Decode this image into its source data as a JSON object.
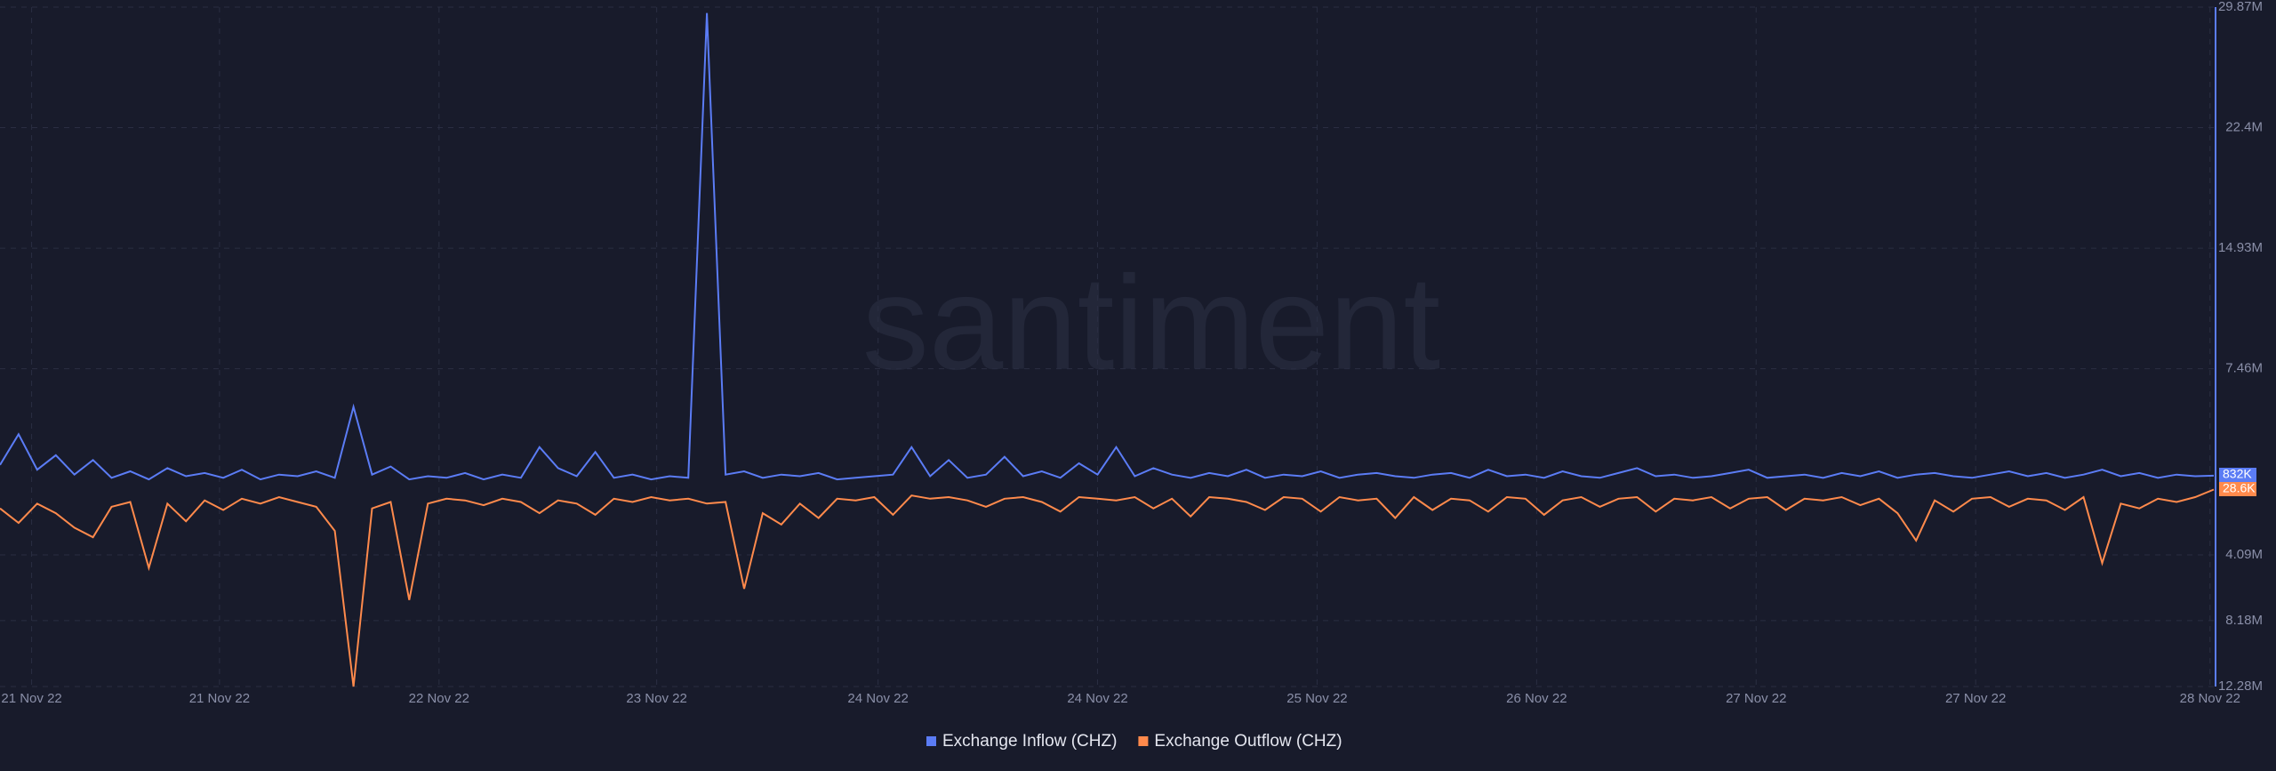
{
  "chart_data": {
    "type": "line",
    "watermark": "santiment",
    "xlim": [
      0,
      119
    ],
    "xticks": [
      {
        "value": 1.7,
        "label": "21 Nov 22"
      },
      {
        "value": 11.8,
        "label": "21 Nov 22"
      },
      {
        "value": 23.6,
        "label": "22 Nov 22"
      },
      {
        "value": 35.3,
        "label": "23 Nov 22"
      },
      {
        "value": 47.2,
        "label": "24 Nov 22"
      },
      {
        "value": 59.0,
        "label": "24 Nov 22"
      },
      {
        "value": 70.8,
        "label": "25 Nov 22"
      },
      {
        "value": 82.6,
        "label": "26 Nov 22"
      },
      {
        "value": 94.4,
        "label": "27 Nov 22"
      },
      {
        "value": 106.2,
        "label": "27 Nov 22"
      },
      {
        "value": 118.8,
        "label": "28 Nov 22"
      }
    ],
    "ylim": [
      0,
      29870000
    ],
    "yticks": [
      {
        "value": 7460000,
        "label": "7.46M"
      },
      {
        "value": 14930000,
        "label": "14.93M"
      },
      {
        "value": 22400000,
        "label": "22.4M"
      },
      {
        "value": 29870000,
        "label": "29.87M"
      }
    ],
    "y2lim": [
      0,
      12280000
    ],
    "y2ticks": [
      {
        "value": 4090000,
        "label": "4.09M"
      },
      {
        "value": 8180000,
        "label": "8.18M"
      },
      {
        "value": 12280000,
        "label": "12.28M"
      }
    ],
    "grid": true,
    "series": [
      {
        "name": "Exchange Inflow (CHZ)",
        "color": "#5b7cf5",
        "axis": "y",
        "last_value_label": "832K",
        "values": [
          1500000,
          3400000,
          1200000,
          2100000,
          900000,
          1800000,
          700000,
          1100000,
          600000,
          1300000,
          800000,
          1000000,
          700000,
          1200000,
          600000,
          900000,
          800000,
          1100000,
          700000,
          5100000,
          900000,
          1400000,
          600000,
          800000,
          700000,
          1000000,
          600000,
          900000,
          700000,
          2600000,
          1300000,
          800000,
          2300000,
          700000,
          900000,
          600000,
          800000,
          700000,
          29500000,
          900000,
          1100000,
          700000,
          900000,
          800000,
          1000000,
          600000,
          700000,
          800000,
          900000,
          2600000,
          800000,
          1800000,
          700000,
          900000,
          2000000,
          800000,
          1100000,
          700000,
          1600000,
          900000,
          2600000,
          800000,
          1300000,
          900000,
          700000,
          1000000,
          800000,
          1200000,
          700000,
          900000,
          800000,
          1100000,
          700000,
          900000,
          1000000,
          800000,
          700000,
          900000,
          1000000,
          700000,
          1200000,
          800000,
          900000,
          700000,
          1100000,
          800000,
          700000,
          1000000,
          1300000,
          800000,
          900000,
          700000,
          800000,
          1000000,
          1200000,
          700000,
          800000,
          900000,
          700000,
          1000000,
          800000,
          1100000,
          700000,
          900000,
          1000000,
          800000,
          700000,
          900000,
          1100000,
          800000,
          1000000,
          700000,
          900000,
          1200000,
          800000,
          1000000,
          700000,
          900000,
          800000,
          832000
        ]
      },
      {
        "name": "Exchange Outflow (CHZ)",
        "color": "#ff8a4c",
        "axis": "y2",
        "last_value_label": "28.6K",
        "values": [
          1200000,
          2100000,
          900000,
          1500000,
          2400000,
          3000000,
          1100000,
          800000,
          4900000,
          900000,
          2000000,
          700000,
          1300000,
          600000,
          900000,
          500000,
          800000,
          1100000,
          2600000,
          12280000,
          1200000,
          800000,
          6900000,
          900000,
          600000,
          700000,
          1000000,
          600000,
          800000,
          1500000,
          700000,
          900000,
          1600000,
          600000,
          800000,
          500000,
          700000,
          600000,
          900000,
          800000,
          6200000,
          1500000,
          2200000,
          900000,
          1800000,
          600000,
          700000,
          500000,
          1600000,
          400000,
          600000,
          500000,
          700000,
          1100000,
          600000,
          500000,
          800000,
          1400000,
          500000,
          600000,
          700000,
          500000,
          1200000,
          600000,
          1700000,
          500000,
          600000,
          800000,
          1300000,
          500000,
          600000,
          1400000,
          500000,
          700000,
          600000,
          1800000,
          500000,
          1300000,
          600000,
          700000,
          1400000,
          500000,
          600000,
          1600000,
          700000,
          500000,
          1100000,
          600000,
          500000,
          1400000,
          600000,
          700000,
          500000,
          1200000,
          600000,
          500000,
          1300000,
          600000,
          700000,
          500000,
          1000000,
          600000,
          1500000,
          3200000,
          700000,
          1400000,
          600000,
          500000,
          1100000,
          600000,
          700000,
          1300000,
          500000,
          4600000,
          900000,
          1200000,
          600000,
          800000,
          500000,
          28600
        ]
      }
    ]
  }
}
